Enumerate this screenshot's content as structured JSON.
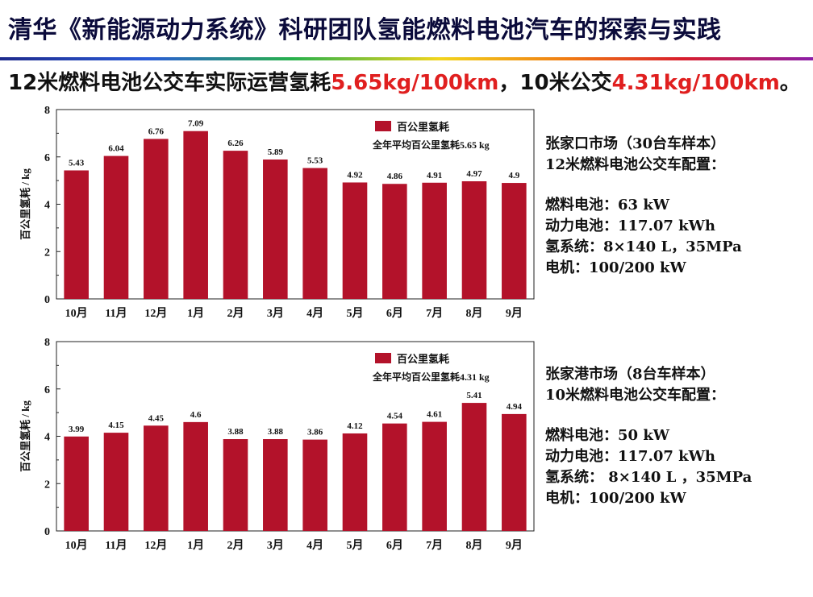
{
  "title": "清华《新能源动力系统》科研团队氢能燃料电池汽车的探索与实践",
  "subtitle": {
    "p1": "12米燃料电池公交车实际运营氢耗",
    "h1": "5.65kg/100km",
    "p2": "，10米公交",
    "h2": "4.31kg/100km",
    "p3": "。"
  },
  "colors": {
    "bar": "#b3122a",
    "highlight": "#e01f1f",
    "title": "#0b0b3b"
  },
  "chart_data": [
    {
      "type": "bar",
      "categories": [
        "10月",
        "11月",
        "12月",
        "1月",
        "2月",
        "3月",
        "4月",
        "5月",
        "6月",
        "7月",
        "8月",
        "9月"
      ],
      "series": [
        {
          "name": "百公里氢耗",
          "values": [
            5.43,
            6.04,
            6.76,
            7.09,
            6.26,
            5.89,
            5.53,
            4.92,
            4.86,
            4.91,
            4.97,
            4.9
          ]
        }
      ],
      "value_labels": [
        "5.43",
        "6.04",
        "6.76",
        "7.09",
        "6.26",
        "5.89",
        "5.53",
        "4.92",
        "4.86",
        "4.91",
        "4.97",
        "4.9"
      ],
      "annotation": "全年平均百公里氢耗5.65 kg",
      "ylabel": "百公里氢耗 / kg",
      "xlabel": "",
      "ylim": [
        0,
        8
      ],
      "yticks": [
        0,
        2,
        4,
        6,
        8
      ],
      "legend": "top-right"
    },
    {
      "type": "bar",
      "categories": [
        "10月",
        "11月",
        "12月",
        "1月",
        "2月",
        "3月",
        "4月",
        "5月",
        "6月",
        "7月",
        "8月",
        "9月"
      ],
      "series": [
        {
          "name": "百公里氢耗",
          "values": [
            3.99,
            4.15,
            4.45,
            4.6,
            3.88,
            3.88,
            3.86,
            4.12,
            4.54,
            4.61,
            5.41,
            4.94
          ]
        }
      ],
      "value_labels": [
        "3.99",
        "4.15",
        "4.45",
        "4.6",
        "3.88",
        "3.88",
        "3.86",
        "4.12",
        "4.54",
        "4.61",
        "5.41",
        "4.94"
      ],
      "annotation": "全年平均百公里氢耗4.31 kg",
      "ylabel": "百公里氢耗 / kg",
      "xlabel": "",
      "ylim": [
        0,
        8
      ],
      "yticks": [
        0,
        2,
        4,
        6,
        8
      ],
      "legend": "top-right"
    }
  ],
  "info_blocks": [
    {
      "heading": "张家口市场（30台车样本）",
      "config_title": "12米燃料电池公交车配置：",
      "specs": [
        "燃料电池：63 kW",
        "动力电池：117.07 kWh",
        "氢系统：8×140 L，35MPa",
        "电机：100/200 kW"
      ]
    },
    {
      "heading": "张家港市场（8台车样本）",
      "config_title": "10米燃料电池公交车配置：",
      "specs": [
        "燃料电池：50 kW",
        "动力电池：117.07 kWh",
        "氢系统： 8×140 L ，35MPa",
        "电机：100/200 kW"
      ]
    }
  ]
}
